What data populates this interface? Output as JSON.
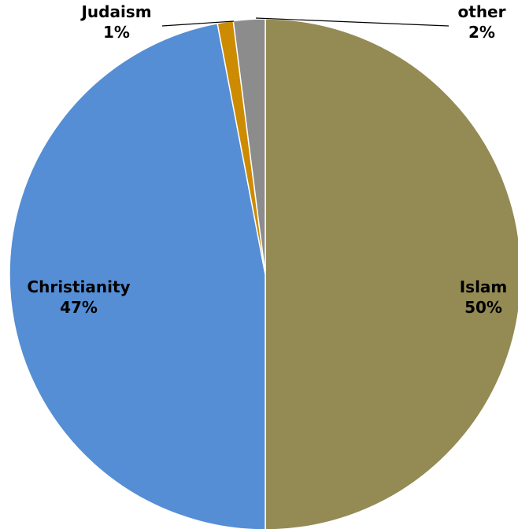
{
  "chart_data": {
    "type": "pie",
    "title": "",
    "start_angle_deg": 0,
    "direction": "clockwise",
    "slices": [
      {
        "name": "Islam",
        "value": 50,
        "percent_label": "50%",
        "color": "#948A54"
      },
      {
        "name": "Christianity",
        "value": 47,
        "percent_label": "47%",
        "color": "#558ED5"
      },
      {
        "name": "Judaism",
        "value": 1,
        "percent_label": "1%",
        "color": "#CC8B00"
      },
      {
        "name": "other",
        "value": 2,
        "percent_label": "2%",
        "color": "#8C8C8C"
      }
    ],
    "slice_border_color": "#FFFFFF"
  }
}
